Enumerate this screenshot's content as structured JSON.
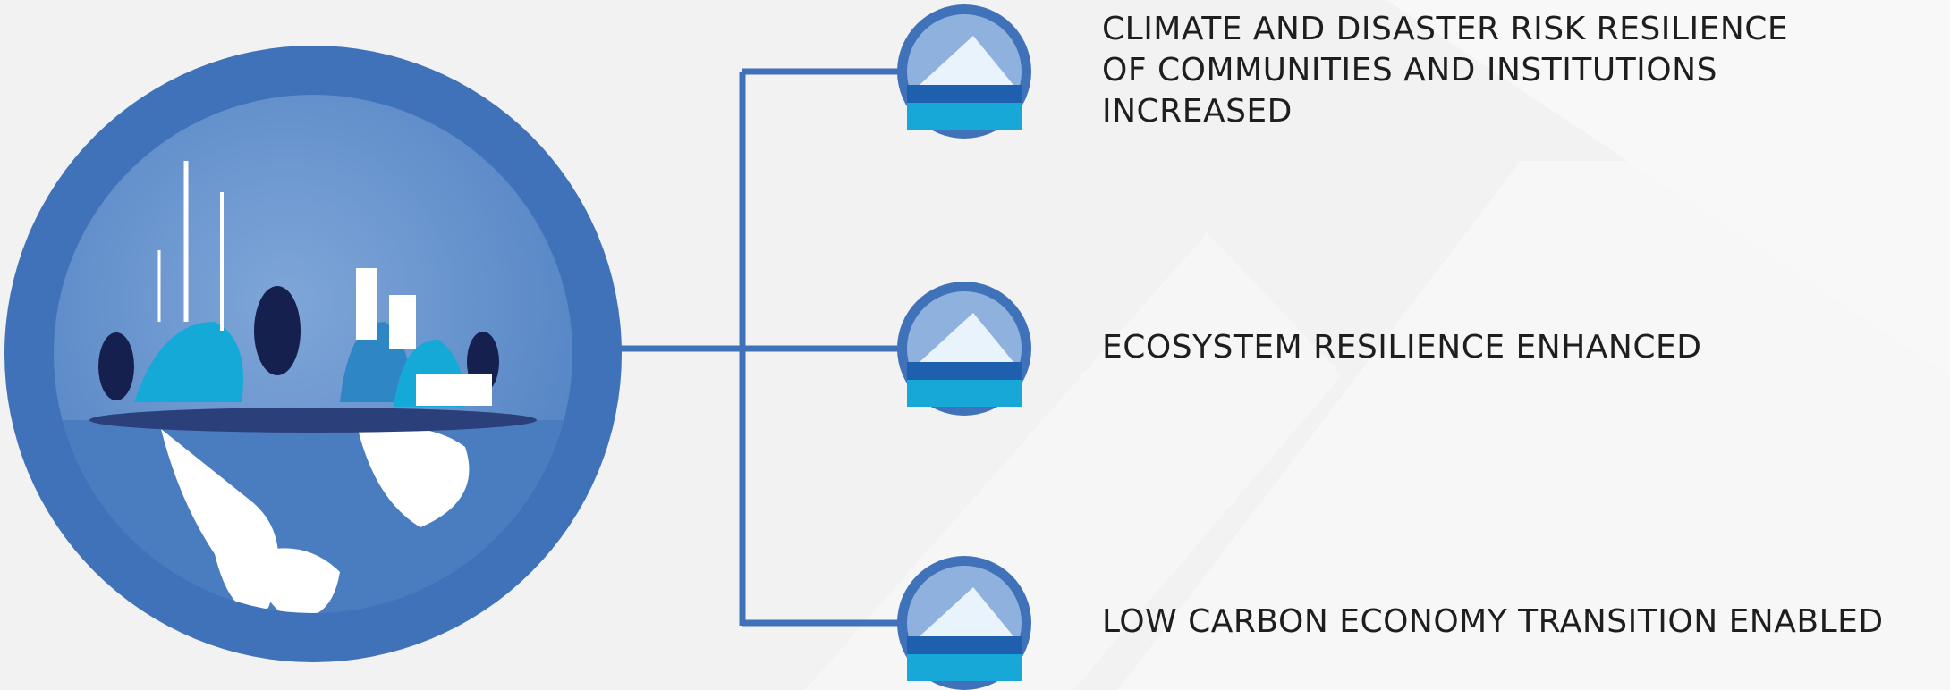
{
  "items": [
    {
      "lines": [
        "CLIMATE AND DISASTER RISK RESILIENCE",
        "OF COMMUNITIES AND INSTITUTIONS",
        "INCREASED"
      ]
    },
    {
      "lines": [
        "ECOSYSTEM RESILIENCE ENHANCED"
      ]
    },
    {
      "lines": [
        "LOW CARBON ECONOMY TRANSITION ENABLED"
      ]
    }
  ]
}
